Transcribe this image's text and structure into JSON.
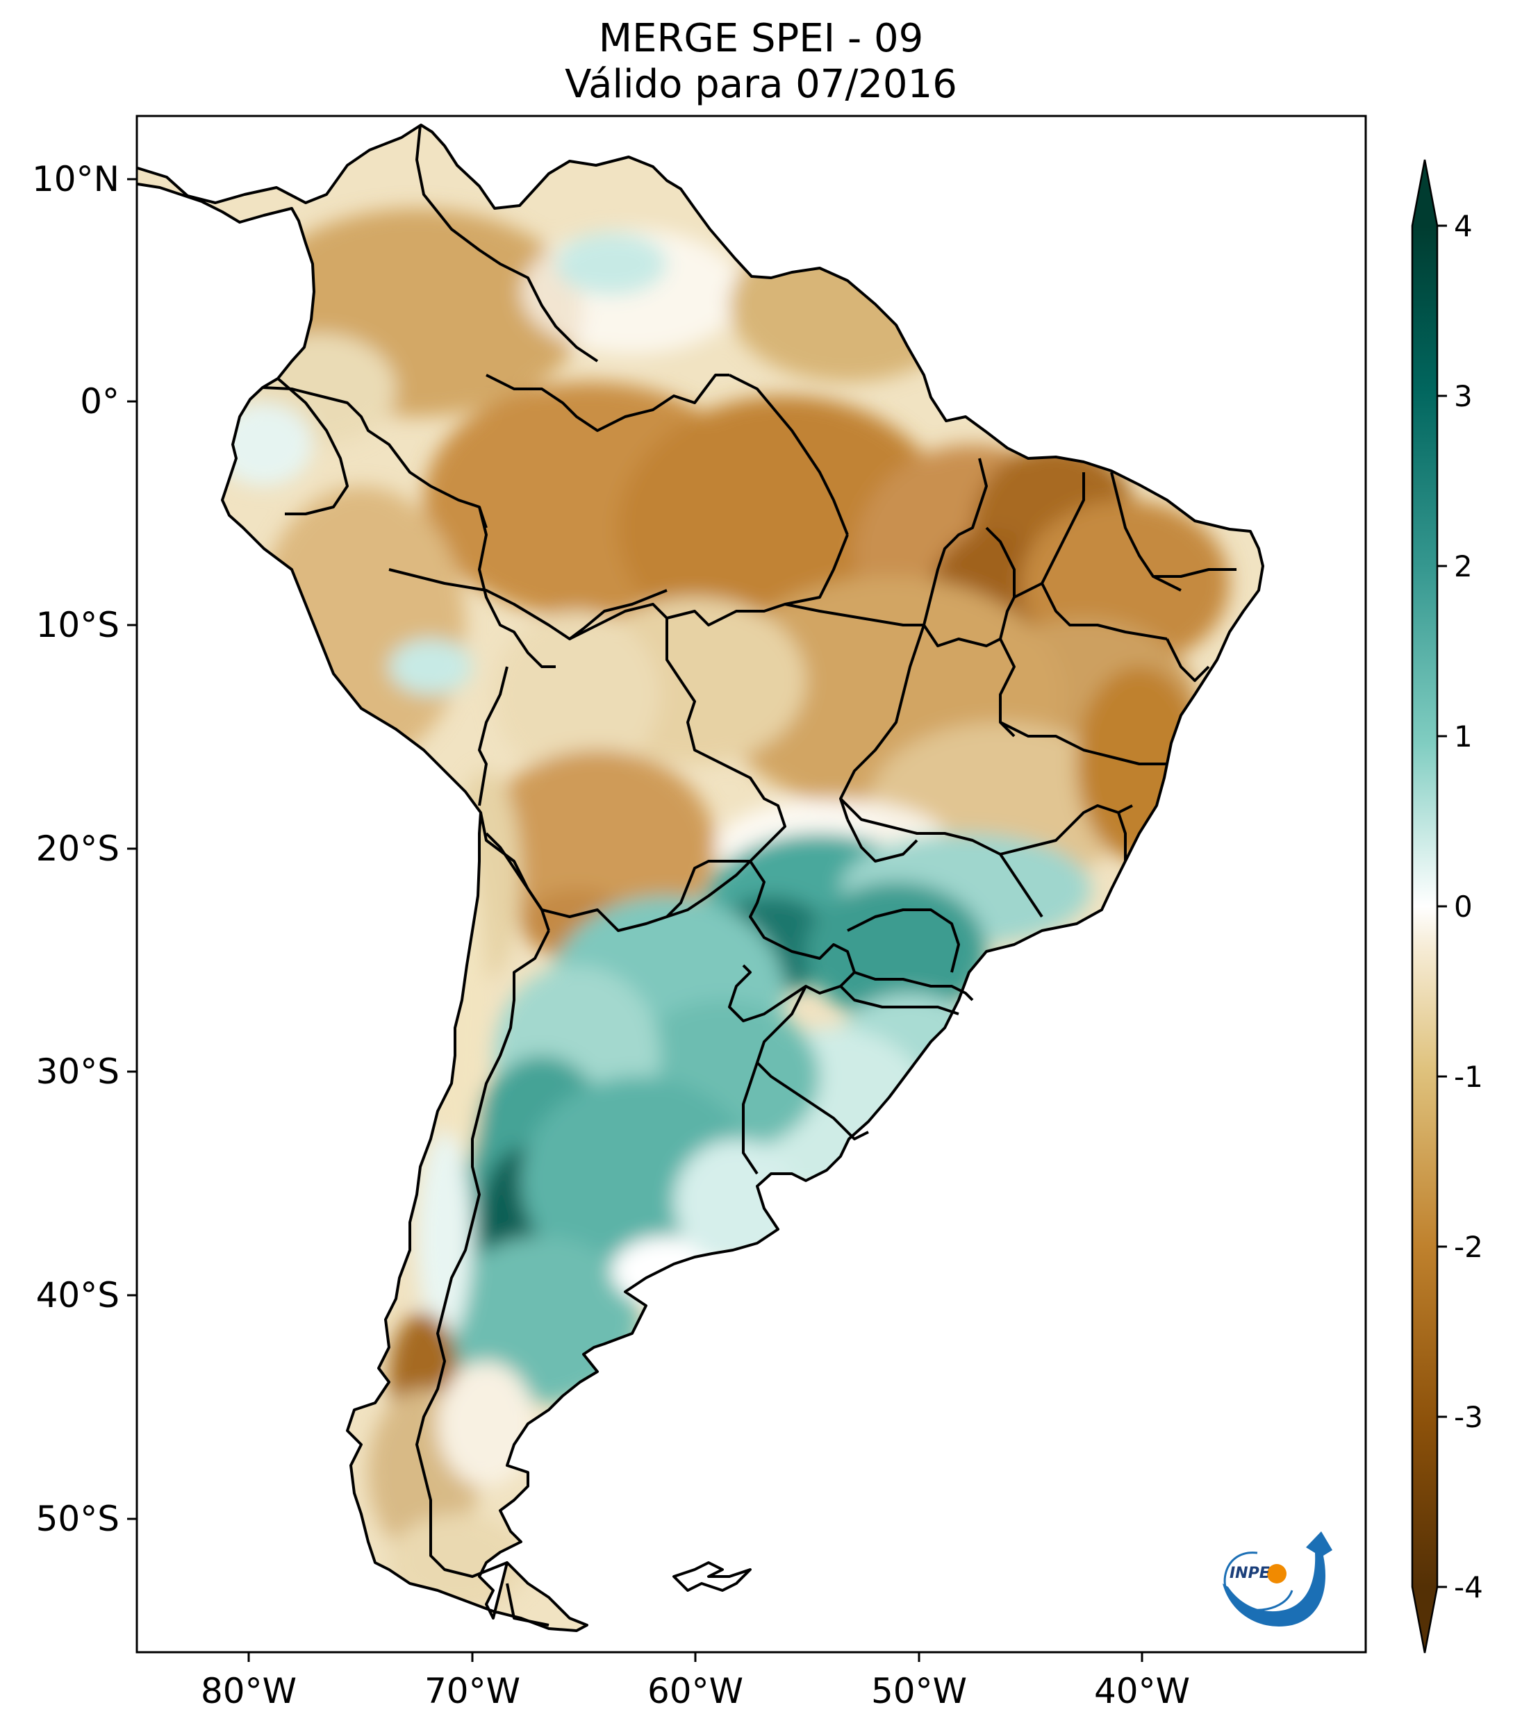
{
  "title": {
    "line1": "MERGE   SPEI - 09",
    "line2": "Válido para 07/2016"
  },
  "axes": {
    "lat_ticks": [
      "10°N",
      "0°",
      "10°S",
      "20°S",
      "30°S",
      "40°S",
      "50°S"
    ],
    "lon_ticks": [
      "80°W",
      "70°W",
      "60°W",
      "50°W",
      "40°W"
    ]
  },
  "colorbar": {
    "ticks": [
      "4",
      "3",
      "2",
      "1",
      "0",
      "-1",
      "-2",
      "-3",
      "-4"
    ],
    "min": -4,
    "max": 4,
    "colors": {
      "very_dry": "#543005",
      "dry": "#bf812d",
      "slightly_dry": "#f6e8c3",
      "neutral": "#ffffff",
      "slightly_wet": "#c7eae5",
      "wet": "#35978f",
      "very_wet": "#003c30"
    }
  },
  "logo": {
    "text": "INPE"
  }
}
